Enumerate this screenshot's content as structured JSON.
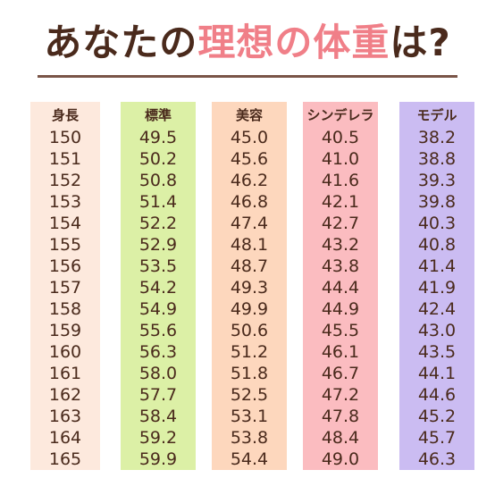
{
  "title": {
    "pre": "あなたの",
    "highlight": "理想の体重",
    "post": "は?"
  },
  "colors": {
    "title_text": "#4a2a1c",
    "title_highlight": "#f07f88",
    "rule": "#7a5548"
  },
  "columns": [
    {
      "header": "身長",
      "bg": "#fde9dd",
      "values": [
        "150",
        "151",
        "152",
        "153",
        "154",
        "155",
        "156",
        "157",
        "158",
        "159",
        "160",
        "161",
        "162",
        "163",
        "164",
        "165"
      ]
    },
    {
      "header": "標準",
      "bg": "#dcf0a6",
      "values": [
        "49.5",
        "50.2",
        "50.8",
        "51.4",
        "52.2",
        "52.9",
        "53.5",
        "54.2",
        "54.9",
        "55.6",
        "56.3",
        "58.0",
        "57.7",
        "58.4",
        "59.2",
        "59.9"
      ]
    },
    {
      "header": "美容",
      "bg": "#fdd7bd",
      "values": [
        "45.0",
        "45.6",
        "46.2",
        "46.8",
        "47.4",
        "48.1",
        "48.7",
        "49.3",
        "49.9",
        "50.6",
        "51.2",
        "51.8",
        "52.5",
        "53.1",
        "53.8",
        "54.4"
      ]
    },
    {
      "header": "シンデレラ",
      "bg": "#fbbcc0",
      "values": [
        "40.5",
        "41.0",
        "41.6",
        "42.1",
        "42.7",
        "43.2",
        "43.8",
        "44.4",
        "44.9",
        "45.5",
        "46.1",
        "46.7",
        "47.2",
        "47.8",
        "48.4",
        "49.0"
      ]
    },
    {
      "header": "モデル",
      "bg": "#cbbcf2",
      "values": [
        "38.2",
        "38.8",
        "39.3",
        "39.8",
        "40.3",
        "40.8",
        "41.4",
        "41.9",
        "42.4",
        "43.0",
        "43.5",
        "44.1",
        "44.6",
        "45.2",
        "45.7",
        "46.3"
      ]
    }
  ]
}
